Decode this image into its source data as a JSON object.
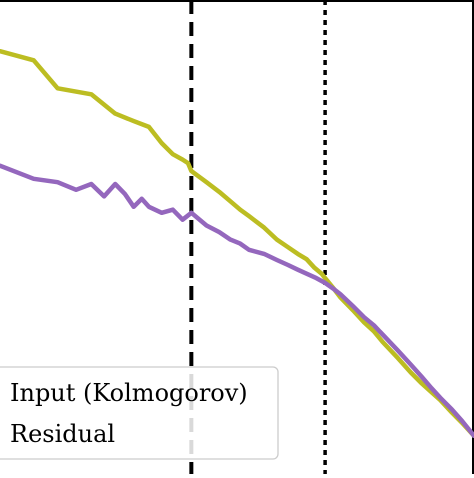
{
  "chart_data": {
    "type": "line",
    "title": "",
    "xlabel": "",
    "ylabel": "",
    "xscale": "log",
    "yscale": "log",
    "xlim": [
      1,
      300
    ],
    "ylim": [
      0.0001,
      1
    ],
    "grid": false,
    "legend_position": "bottom-left",
    "vlines": [
      {
        "x": 10,
        "style": "dashed",
        "color": "#000000"
      },
      {
        "x": 50,
        "style": "dotted",
        "color": "#000000"
      }
    ],
    "series": [
      {
        "name": "Input (Kolmogorov)",
        "color": "#bcbd22",
        "x": [
          1,
          1.5,
          2,
          3,
          4,
          5,
          6,
          7,
          8,
          9,
          9.6,
          10,
          12,
          14,
          16,
          18,
          20,
          24,
          28,
          32,
          36,
          40,
          44,
          48,
          50,
          56,
          60,
          70,
          80,
          90,
          100,
          120,
          140,
          160,
          180,
          200,
          230,
          260,
          300
        ],
        "y": [
          0.37,
          0.31,
          0.18,
          0.16,
          0.11,
          0.095,
          0.085,
          0.062,
          0.05,
          0.045,
          0.042,
          0.036,
          0.029,
          0.024,
          0.02,
          0.017,
          0.015,
          0.012,
          0.0095,
          0.0082,
          0.0072,
          0.0065,
          0.0055,
          0.0049,
          0.0045,
          0.0036,
          0.0031,
          0.0024,
          0.0019,
          0.0016,
          0.0013,
          0.00095,
          0.00072,
          0.00058,
          0.00049,
          0.00042,
          0.00033,
          0.00027,
          0.00021
        ]
      },
      {
        "name": "Residual",
        "color": "#9467bd",
        "x": [
          1,
          1.5,
          2,
          2.5,
          3,
          3.5,
          4,
          4.5,
          5,
          5.5,
          6,
          7,
          8,
          9,
          10,
          12,
          14,
          16,
          18,
          20,
          24,
          28,
          32,
          36,
          40,
          45,
          50,
          56,
          60,
          70,
          80,
          90,
          100,
          120,
          140,
          160,
          180,
          200,
          230,
          260,
          300
        ],
        "y": [
          0.04,
          0.031,
          0.029,
          0.025,
          0.028,
          0.022,
          0.028,
          0.023,
          0.018,
          0.021,
          0.018,
          0.016,
          0.017,
          0.014,
          0.016,
          0.0125,
          0.011,
          0.0095,
          0.0088,
          0.0078,
          0.0072,
          0.0064,
          0.0058,
          0.0053,
          0.0049,
          0.0045,
          0.0041,
          0.0036,
          0.0033,
          0.0026,
          0.0021,
          0.0018,
          0.0015,
          0.0011,
          0.00084,
          0.00066,
          0.00053,
          0.00044,
          0.00035,
          0.00028,
          0.00021
        ]
      }
    ]
  }
}
